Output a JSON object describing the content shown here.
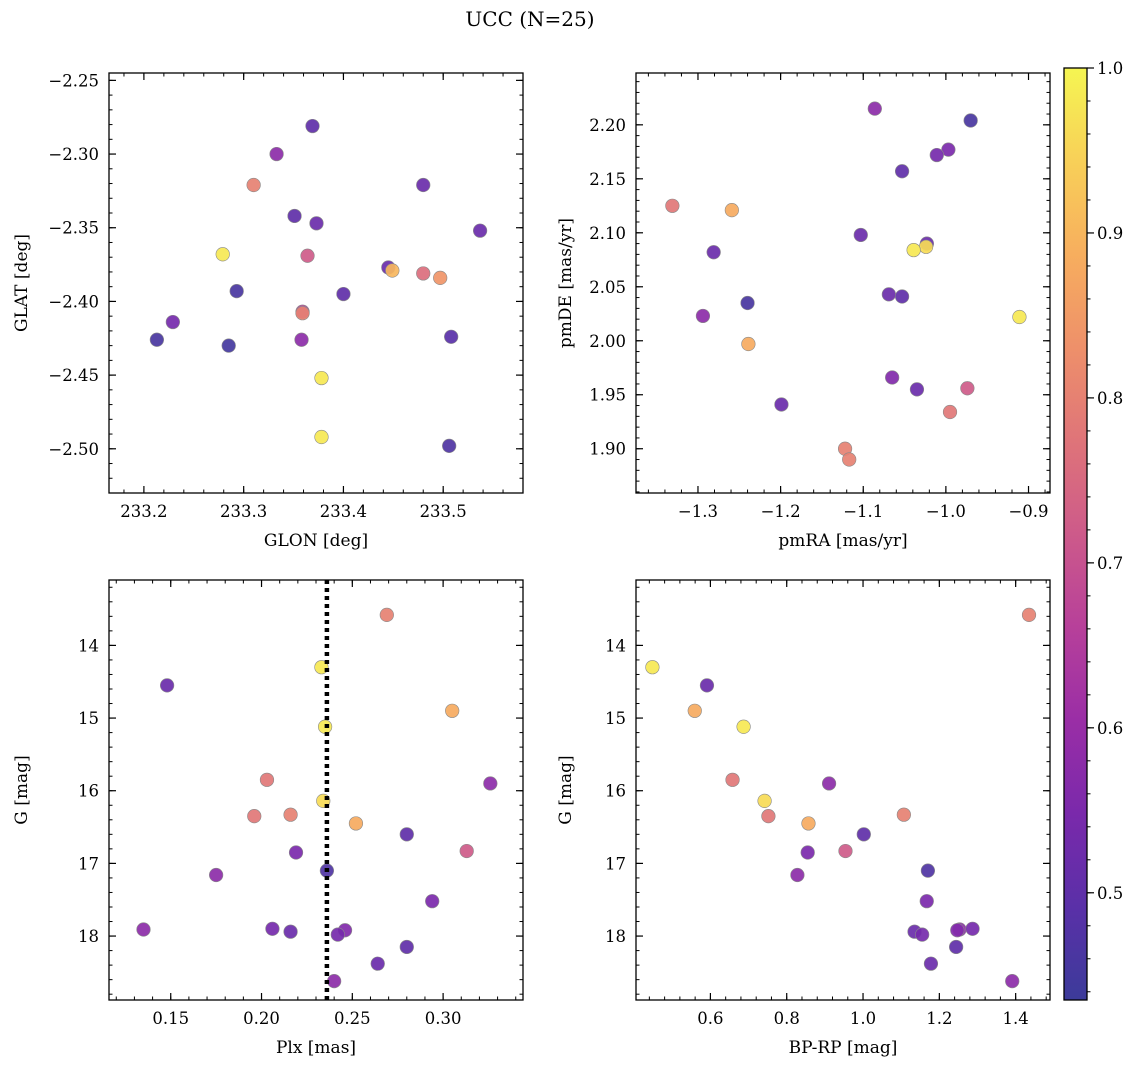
{
  "title": "UCC (N=25)",
  "colors": {
    "axis": "#000000",
    "marker_edge": "#8a8a8a",
    "vline": "#000000"
  },
  "colorbar": {
    "ticks": [
      0.5,
      0.6,
      0.7,
      0.8,
      0.9,
      1.0
    ],
    "tick_labels": [
      "0.5",
      "0.6",
      "0.7",
      "0.8",
      "0.9",
      "1.0"
    ],
    "range": [
      0.435,
      1.0
    ],
    "colormap": "plasma"
  },
  "chart_data": [
    {
      "type": "scatter",
      "xlabel": "GLON [deg]",
      "ylabel": "GLAT [deg]",
      "xlim": [
        233.165,
        233.58
      ],
      "ylim": [
        -2.53,
        -2.245
      ],
      "xticks": [
        233.2,
        233.3,
        233.4,
        233.5
      ],
      "xtick_labels": [
        "233.2",
        "233.3",
        "233.4",
        "233.5"
      ],
      "yticks": [
        -2.25,
        -2.3,
        -2.35,
        -2.4,
        -2.45,
        -2.5
      ],
      "ytick_labels": [
        "−2.25",
        "−2.30",
        "−2.35",
        "−2.40",
        "−2.45",
        "−2.50"
      ],
      "y_inverted": false,
      "points": [
        {
          "x": 233.369,
          "y": -2.281,
          "c": 0.5
        },
        {
          "x": 233.333,
          "y": -2.3,
          "c": 0.58
        },
        {
          "x": 233.31,
          "y": -2.321,
          "c": 0.8
        },
        {
          "x": 233.48,
          "y": -2.321,
          "c": 0.52
        },
        {
          "x": 233.351,
          "y": -2.342,
          "c": 0.5
        },
        {
          "x": 233.373,
          "y": -2.347,
          "c": 0.52
        },
        {
          "x": 233.537,
          "y": -2.352,
          "c": 0.52
        },
        {
          "x": 233.279,
          "y": -2.368,
          "c": 0.98
        },
        {
          "x": 233.364,
          "y": -2.369,
          "c": 0.72
        },
        {
          "x": 233.445,
          "y": -2.377,
          "c": 0.52
        },
        {
          "x": 233.449,
          "y": -2.379,
          "c": 0.9
        },
        {
          "x": 233.48,
          "y": -2.381,
          "c": 0.76
        },
        {
          "x": 233.497,
          "y": -2.384,
          "c": 0.84
        },
        {
          "x": 233.293,
          "y": -2.393,
          "c": 0.46
        },
        {
          "x": 233.4,
          "y": -2.395,
          "c": 0.5
        },
        {
          "x": 233.359,
          "y": -2.407,
          "c": 0.66
        },
        {
          "x": 233.359,
          "y": -2.408,
          "c": 0.8
        },
        {
          "x": 233.229,
          "y": -2.414,
          "c": 0.54
        },
        {
          "x": 233.508,
          "y": -2.424,
          "c": 0.49
        },
        {
          "x": 233.358,
          "y": -2.426,
          "c": 0.58
        },
        {
          "x": 233.213,
          "y": -2.426,
          "c": 0.46
        },
        {
          "x": 233.285,
          "y": -2.43,
          "c": 0.45
        },
        {
          "x": 233.378,
          "y": -2.452,
          "c": 0.98
        },
        {
          "x": 233.378,
          "y": -2.492,
          "c": 0.98
        },
        {
          "x": 233.506,
          "y": -2.498,
          "c": 0.47
        }
      ]
    },
    {
      "type": "scatter",
      "xlabel": "pmRA [mas/yr]",
      "ylabel": "pmDE [mas/yr]",
      "xlim": [
        -1.375,
        -0.874
      ],
      "ylim": [
        1.859,
        2.248
      ],
      "xticks": [
        -1.3,
        -1.2,
        -1.1,
        -1.0,
        -0.9
      ],
      "xtick_labels": [
        "−1.3",
        "−1.2",
        "−1.1",
        "−1.0",
        "−0.9"
      ],
      "yticks": [
        1.9,
        1.95,
        2.0,
        2.05,
        2.1,
        2.15,
        2.2
      ],
      "ytick_labels": [
        "1.90",
        "1.95",
        "2.00",
        "2.05",
        "2.10",
        "2.15",
        "2.20"
      ],
      "y_inverted": false,
      "points": [
        {
          "x": -1.086,
          "y": 2.215,
          "c": 0.58
        },
        {
          "x": -0.97,
          "y": 2.204,
          "c": 0.46
        },
        {
          "x": -0.997,
          "y": 2.177,
          "c": 0.55
        },
        {
          "x": -1.011,
          "y": 2.172,
          "c": 0.54
        },
        {
          "x": -1.053,
          "y": 2.157,
          "c": 0.5
        },
        {
          "x": -1.331,
          "y": 2.125,
          "c": 0.78
        },
        {
          "x": -1.259,
          "y": 2.121,
          "c": 0.88
        },
        {
          "x": -1.103,
          "y": 2.098,
          "c": 0.52
        },
        {
          "x": -1.023,
          "y": 2.09,
          "c": 0.52
        },
        {
          "x": -1.024,
          "y": 2.087,
          "c": 0.96
        },
        {
          "x": -1.039,
          "y": 2.084,
          "c": 0.98
        },
        {
          "x": -1.281,
          "y": 2.082,
          "c": 0.52
        },
        {
          "x": -1.069,
          "y": 2.043,
          "c": 0.52
        },
        {
          "x": -1.053,
          "y": 2.041,
          "c": 0.5
        },
        {
          "x": -1.24,
          "y": 2.035,
          "c": 0.46
        },
        {
          "x": -1.294,
          "y": 2.023,
          "c": 0.58
        },
        {
          "x": -0.911,
          "y": 2.022,
          "c": 0.98
        },
        {
          "x": -1.239,
          "y": 1.997,
          "c": 0.88
        },
        {
          "x": -1.065,
          "y": 1.966,
          "c": 0.56
        },
        {
          "x": -0.974,
          "y": 1.956,
          "c": 0.72
        },
        {
          "x": -1.035,
          "y": 1.955,
          "c": 0.52
        },
        {
          "x": -0.995,
          "y": 1.934,
          "c": 0.78
        },
        {
          "x": -1.199,
          "y": 1.941,
          "c": 0.52
        },
        {
          "x": -1.122,
          "y": 1.9,
          "c": 0.8
        },
        {
          "x": -1.117,
          "y": 1.89,
          "c": 0.8
        }
      ]
    },
    {
      "type": "scatter",
      "xlabel": "Plx [mas]",
      "ylabel": "G [mag]",
      "xlim": [
        0.116,
        0.344
      ],
      "ylim": [
        13.1,
        18.88
      ],
      "xticks": [
        0.15,
        0.2,
        0.25,
        0.3
      ],
      "xtick_labels": [
        "0.15",
        "0.20",
        "0.25",
        "0.30"
      ],
      "yticks": [
        14,
        15,
        16,
        17,
        18
      ],
      "ytick_labels": [
        "14",
        "15",
        "16",
        "17",
        "18"
      ],
      "y_inverted": true,
      "vline": 0.236,
      "points": [
        {
          "x": 0.269,
          "y": 13.58,
          "c": 0.8
        },
        {
          "x": 0.233,
          "y": 14.3,
          "c": 0.98
        },
        {
          "x": 0.148,
          "y": 14.55,
          "c": 0.52
        },
        {
          "x": 0.305,
          "y": 14.9,
          "c": 0.88
        },
        {
          "x": 0.235,
          "y": 15.12,
          "c": 0.98
        },
        {
          "x": 0.203,
          "y": 15.85,
          "c": 0.78
        },
        {
          "x": 0.326,
          "y": 15.9,
          "c": 0.58
        },
        {
          "x": 0.234,
          "y": 16.14,
          "c": 0.96
        },
        {
          "x": 0.216,
          "y": 16.33,
          "c": 0.8
        },
        {
          "x": 0.196,
          "y": 16.35,
          "c": 0.78
        },
        {
          "x": 0.252,
          "y": 16.45,
          "c": 0.88
        },
        {
          "x": 0.28,
          "y": 16.6,
          "c": 0.5
        },
        {
          "x": 0.313,
          "y": 16.83,
          "c": 0.72
        },
        {
          "x": 0.219,
          "y": 16.85,
          "c": 0.55
        },
        {
          "x": 0.236,
          "y": 17.1,
          "c": 0.47
        },
        {
          "x": 0.175,
          "y": 17.16,
          "c": 0.58
        },
        {
          "x": 0.294,
          "y": 17.52,
          "c": 0.55
        },
        {
          "x": 0.135,
          "y": 17.91,
          "c": 0.58
        },
        {
          "x": 0.206,
          "y": 17.9,
          "c": 0.54
        },
        {
          "x": 0.216,
          "y": 17.94,
          "c": 0.52
        },
        {
          "x": 0.246,
          "y": 17.92,
          "c": 0.56
        },
        {
          "x": 0.242,
          "y": 17.98,
          "c": 0.54
        },
        {
          "x": 0.28,
          "y": 18.15,
          "c": 0.5
        },
        {
          "x": 0.264,
          "y": 18.38,
          "c": 0.52
        },
        {
          "x": 0.24,
          "y": 18.62,
          "c": 0.58
        }
      ]
    },
    {
      "type": "scatter",
      "xlabel": "BP-RP [mag]",
      "ylabel": "G [mag]",
      "xlim": [
        0.405,
        1.49
      ],
      "ylim": [
        13.1,
        18.88
      ],
      "xticks": [
        0.6,
        0.8,
        1.0,
        1.2,
        1.4
      ],
      "xtick_labels": [
        "0.6",
        "0.8",
        "1.0",
        "1.2",
        "1.4"
      ],
      "yticks": [
        14,
        15,
        16,
        17,
        18
      ],
      "ytick_labels": [
        "14",
        "15",
        "16",
        "17",
        "18"
      ],
      "y_inverted": true,
      "points": [
        {
          "x": 1.435,
          "y": 13.58,
          "c": 0.8
        },
        {
          "x": 0.448,
          "y": 14.3,
          "c": 0.98
        },
        {
          "x": 0.591,
          "y": 14.55,
          "c": 0.52
        },
        {
          "x": 0.559,
          "y": 14.9,
          "c": 0.88
        },
        {
          "x": 0.687,
          "y": 15.12,
          "c": 0.98
        },
        {
          "x": 0.658,
          "y": 15.85,
          "c": 0.78
        },
        {
          "x": 0.911,
          "y": 15.9,
          "c": 0.58
        },
        {
          "x": 0.742,
          "y": 16.14,
          "c": 0.96
        },
        {
          "x": 1.107,
          "y": 16.33,
          "c": 0.8
        },
        {
          "x": 0.752,
          "y": 16.35,
          "c": 0.78
        },
        {
          "x": 0.857,
          "y": 16.45,
          "c": 0.88
        },
        {
          "x": 1.002,
          "y": 16.6,
          "c": 0.5
        },
        {
          "x": 0.954,
          "y": 16.83,
          "c": 0.72
        },
        {
          "x": 0.855,
          "y": 16.85,
          "c": 0.55
        },
        {
          "x": 1.17,
          "y": 17.1,
          "c": 0.47
        },
        {
          "x": 0.828,
          "y": 17.16,
          "c": 0.58
        },
        {
          "x": 1.167,
          "y": 17.52,
          "c": 0.55
        },
        {
          "x": 1.253,
          "y": 17.91,
          "c": 0.58
        },
        {
          "x": 1.287,
          "y": 17.9,
          "c": 0.54
        },
        {
          "x": 1.135,
          "y": 17.94,
          "c": 0.52
        },
        {
          "x": 1.247,
          "y": 17.92,
          "c": 0.56
        },
        {
          "x": 1.155,
          "y": 17.98,
          "c": 0.54
        },
        {
          "x": 1.244,
          "y": 18.15,
          "c": 0.5
        },
        {
          "x": 1.178,
          "y": 18.38,
          "c": 0.52
        },
        {
          "x": 1.391,
          "y": 18.62,
          "c": 0.58
        }
      ]
    }
  ]
}
